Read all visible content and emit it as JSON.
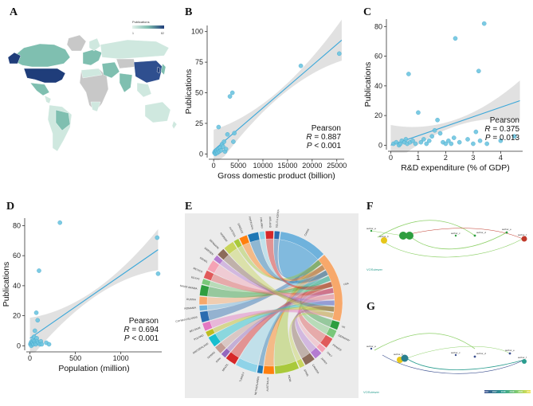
{
  "figure": {
    "labels": {
      "a": "A",
      "b": "B",
      "c": "C",
      "d": "D",
      "e": "E",
      "f": "F",
      "g": "G"
    },
    "map": {
      "legend_title": "Publications",
      "legend_min": "1",
      "legend_max": "82",
      "colors": {
        "low": "#cfe8df",
        "mid": "#7fbfb0",
        "high": "#1f3d7a",
        "none": "#c8c8c8",
        "ocean": "#ffffff"
      }
    },
    "network_f": {
      "nodes": [
        "author_a",
        "author_b",
        "author_c",
        "author_d",
        "author_e",
        "author_f"
      ],
      "watermark": "VOSviewer"
    },
    "network_g": {
      "watermark": "VOSviewer",
      "colorbar_ticks": [
        "2016",
        "2017",
        "2018",
        "2019",
        "2020",
        "2021"
      ]
    },
    "chord": {
      "countries": [
        "SOUTH KOREA",
        "CHINA",
        "USA",
        "UK",
        "GERMANY",
        "FRANCE",
        "ITALY",
        "JAPAN",
        "CANADA",
        "SPAIN",
        "INDIA",
        "AUSTRALIA",
        "NETHERLANDS",
        "TURKEY",
        "BRAZIL",
        "IRAN",
        "TAIWAN",
        "SWITZERLAND",
        "POLAND",
        "BELGIUM",
        "CAYMAN ISLANDS",
        "ROMANIA",
        "RUSSIA",
        "SAUDI ARABIA",
        "EGYPT",
        "MEXICO",
        "ISRAEL",
        "SWEDEN",
        "DENMARK",
        "NORWAY",
        "AUSTRIA",
        "GREECE",
        "PORTUGAL",
        "FINLAND",
        "IRELAND"
      ]
    }
  },
  "chart_data": [
    {
      "type": "scatter",
      "panel": "B",
      "xlabel": "Gross domestic product (billion)",
      "ylabel": "Publications",
      "xlim": [
        -1000,
        26500
      ],
      "ylim": [
        -3,
        105
      ],
      "xticks": [
        0,
        5000,
        10000,
        15000,
        20000,
        25000
      ],
      "yticks": [
        0,
        25,
        50,
        75,
        100
      ],
      "points": [
        [
          150,
          1
        ],
        [
          250,
          2
        ],
        [
          350,
          0
        ],
        [
          450,
          1
        ],
        [
          550,
          3
        ],
        [
          650,
          2
        ],
        [
          800,
          1
        ],
        [
          900,
          4
        ],
        [
          1100,
          2
        ],
        [
          1300,
          5
        ],
        [
          1500,
          3
        ],
        [
          1700,
          8
        ],
        [
          1900,
          6
        ],
        [
          2100,
          10
        ],
        [
          2300,
          2
        ],
        [
          2500,
          4
        ],
        [
          1000,
          22
        ],
        [
          2800,
          16
        ],
        [
          3300,
          47
        ],
        [
          3800,
          50
        ],
        [
          4200,
          17
        ],
        [
          4000,
          10
        ],
        [
          17700,
          72
        ],
        [
          25500,
          82
        ]
      ],
      "fit": {
        "x": [
          0,
          26000
        ],
        "y": [
          3,
          93
        ]
      },
      "annotation": {
        "method": "Pearson",
        "r_label": "R",
        "r": "= 0.887",
        "p_label": "P",
        "p": "< 0.001"
      }
    },
    {
      "type": "scatter",
      "panel": "C",
      "xlabel": "R&D expenditure (% of GDP)",
      "ylabel": "Publications",
      "xlim": [
        -0.1,
        4.8
      ],
      "ylim": [
        -3,
        85
      ],
      "xticks": [
        0,
        1,
        2,
        3,
        4
      ],
      "yticks": [
        0,
        20,
        40,
        60,
        80
      ],
      "points": [
        [
          0.1,
          1
        ],
        [
          0.2,
          2
        ],
        [
          0.3,
          0
        ],
        [
          0.35,
          1
        ],
        [
          0.4,
          3
        ],
        [
          0.5,
          2
        ],
        [
          0.55,
          4
        ],
        [
          0.6,
          1
        ],
        [
          0.65,
          48
        ],
        [
          0.7,
          2
        ],
        [
          0.8,
          3
        ],
        [
          0.9,
          1
        ],
        [
          1.0,
          22
        ],
        [
          1.1,
          2
        ],
        [
          1.2,
          4
        ],
        [
          1.3,
          1
        ],
        [
          1.4,
          3
        ],
        [
          1.5,
          6
        ],
        [
          1.6,
          10
        ],
        [
          1.7,
          17
        ],
        [
          1.8,
          8
        ],
        [
          1.9,
          2
        ],
        [
          2.0,
          1
        ],
        [
          2.1,
          3
        ],
        [
          2.2,
          1
        ],
        [
          2.3,
          5
        ],
        [
          2.35,
          72
        ],
        [
          2.5,
          2
        ],
        [
          2.8,
          4
        ],
        [
          3.0,
          1
        ],
        [
          3.1,
          9
        ],
        [
          3.2,
          50
        ],
        [
          3.25,
          3
        ],
        [
          3.4,
          82
        ],
        [
          3.5,
          1
        ],
        [
          4.0,
          3
        ],
        [
          4.5,
          6
        ]
      ],
      "fit": {
        "x": [
          0,
          4.7
        ],
        "y": [
          0,
          30
        ]
      },
      "annotation": {
        "method": "Pearson",
        "r_label": "R",
        "r": "= 0.375",
        "p_label": "P",
        "p": "= 0.013"
      }
    },
    {
      "type": "scatter",
      "panel": "D",
      "xlabel": "Population (million)",
      "ylabel": "Publications",
      "xlim": [
        -40,
        1450
      ],
      "ylim": [
        -3,
        85
      ],
      "xticks": [
        0,
        500,
        1000
      ],
      "yticks": [
        0,
        20,
        40,
        60,
        80
      ],
      "points": [
        [
          5,
          1
        ],
        [
          10,
          2
        ],
        [
          15,
          0
        ],
        [
          20,
          3
        ],
        [
          25,
          1
        ],
        [
          30,
          2
        ],
        [
          35,
          4
        ],
        [
          40,
          1
        ],
        [
          45,
          6
        ],
        [
          50,
          3
        ],
        [
          55,
          10
        ],
        [
          60,
          2
        ],
        [
          65,
          1
        ],
        [
          70,
          22
        ],
        [
          75,
          5
        ],
        [
          80,
          3
        ],
        [
          85,
          17
        ],
        [
          90,
          2
        ],
        [
          100,
          50
        ],
        [
          110,
          1
        ],
        [
          120,
          3
        ],
        [
          130,
          1
        ],
        [
          180,
          2
        ],
        [
          210,
          1
        ],
        [
          330,
          82
        ],
        [
          1400,
          72
        ],
        [
          1410,
          48
        ]
      ],
      "fit": {
        "x": [
          0,
          1410
        ],
        "y": [
          5,
          64
        ]
      },
      "annotation": {
        "method": "Pearson",
        "r_label": "R",
        "r": "= 0.694",
        "p_label": "P",
        "p": "< 0.001"
      }
    }
  ]
}
